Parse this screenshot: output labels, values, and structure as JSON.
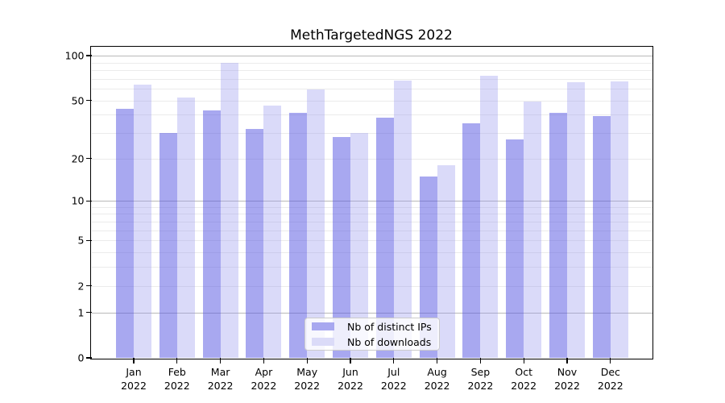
{
  "title": "MethTargetedNGS 2022",
  "legend": {
    "entries": [
      {
        "label": "Nb of distinct IPs"
      },
      {
        "label": "Nb of downloads"
      }
    ]
  },
  "chart_data": {
    "type": "bar",
    "title": "MethTargetedNGS 2022",
    "scale": "log10(1+x)",
    "categories": [
      "Jan",
      "Feb",
      "Mar",
      "Apr",
      "May",
      "Jun",
      "Jul",
      "Aug",
      "Sep",
      "Oct",
      "Nov",
      "Dec"
    ],
    "year_label": "2022",
    "series": [
      {
        "name": "Nb of distinct IPs",
        "values": [
          44,
          30,
          43,
          32,
          41,
          28,
          38,
          15,
          35,
          27,
          41,
          39
        ],
        "color": "#a8a8f0",
        "fill_rgba": "rgba(88,88,226,0.52)"
      },
      {
        "name": "Nb of downloads",
        "values": [
          64,
          52,
          90,
          46,
          59,
          30,
          68,
          18,
          73,
          49,
          66,
          67
        ],
        "color": "#dbdbf8",
        "fill_rgba": "rgba(148,148,236,0.34)"
      }
    ],
    "xlabel": "",
    "ylabel": "",
    "ylim": [
      0,
      114
    ],
    "y_axis": {
      "ticks": [
        0,
        1,
        2,
        5,
        10,
        20,
        50,
        100
      ],
      "major_gridlines": [
        1,
        10,
        100
      ],
      "minor_gridlines": [
        2,
        3,
        4,
        5,
        6,
        7,
        8,
        9,
        20,
        30,
        40,
        50,
        60,
        70,
        80,
        90
      ]
    },
    "grid": {
      "major_color": "#b9b9b9",
      "minor_color": "#ebebeb",
      "visible": true
    },
    "legend_position": "lower center",
    "axis_color": "#000000",
    "background_color": "#ffffff"
  }
}
